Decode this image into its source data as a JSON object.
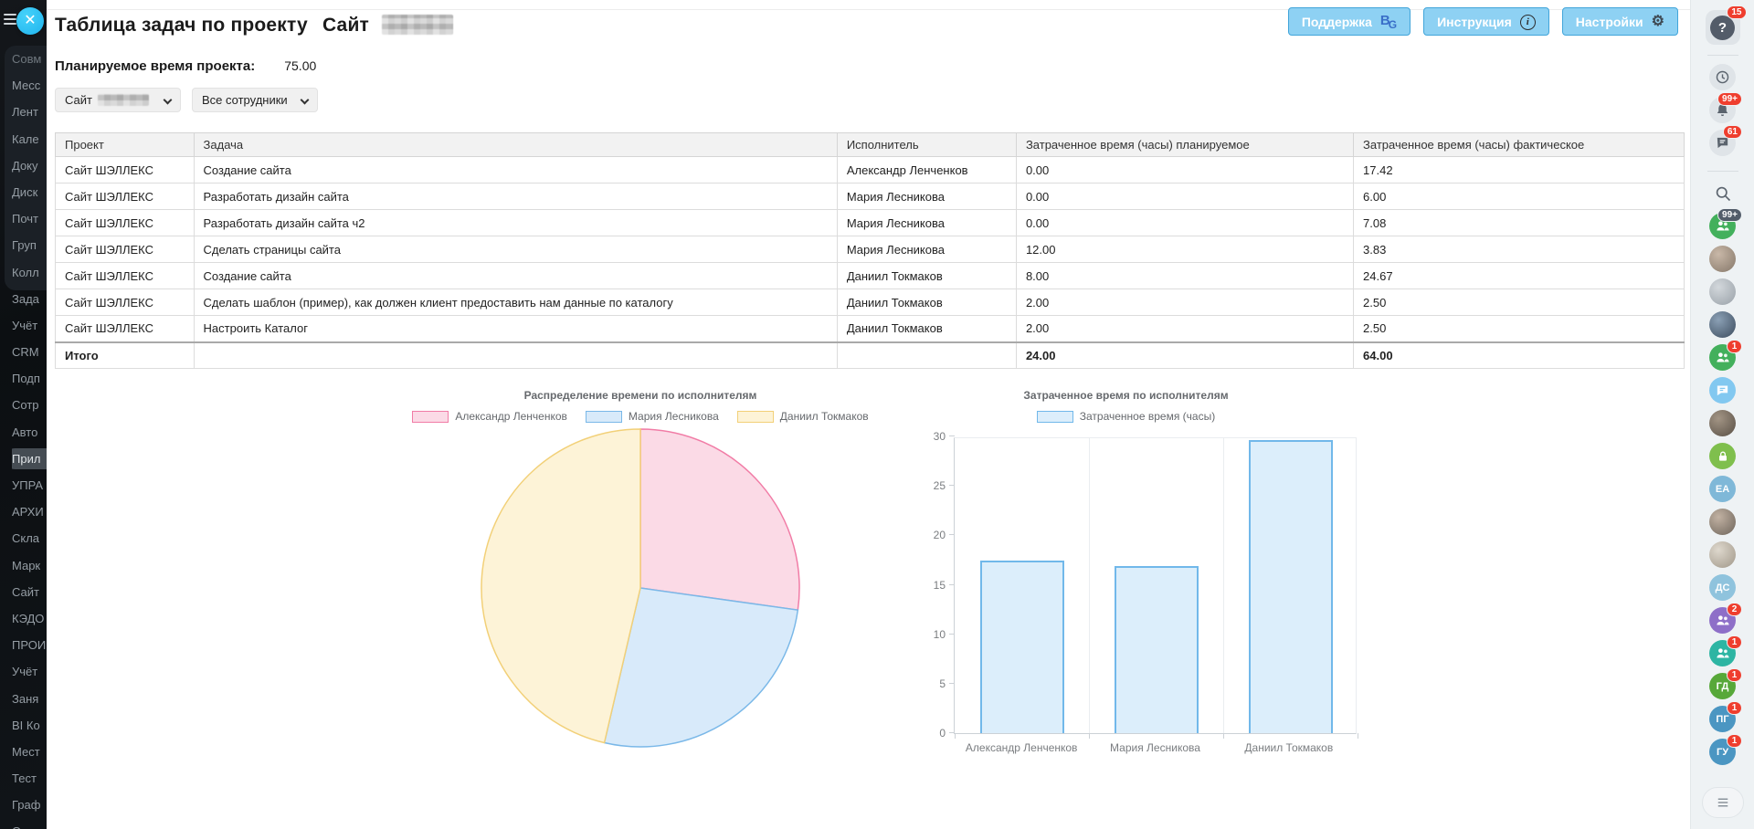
{
  "header": {
    "title": "Таблица задач по проекту",
    "project_word": "Сайт",
    "buttons": [
      {
        "name": "support",
        "label": "Поддержка",
        "icon": "bg-logo"
      },
      {
        "name": "instruction",
        "label": "Инструкция",
        "icon": "info"
      },
      {
        "name": "settings",
        "label": "Настройки",
        "icon": "gear"
      }
    ]
  },
  "planned_time": {
    "label": "Планируемое время проекта:",
    "value": "75.00"
  },
  "filters": {
    "project_select": "Сайт",
    "employee_select": "Все сотрудники"
  },
  "table": {
    "columns": [
      "Проект",
      "Задача",
      "Исполнитель",
      "Затраченное время (часы) планируемое",
      "Затраченное время (часы) фактическое"
    ],
    "rows": [
      [
        "Сайт ШЭЛЛЕКС",
        "Создание сайта",
        "Александр Ленченков",
        "0.00",
        "17.42"
      ],
      [
        "Сайт ШЭЛЛЕКС",
        "Разработать дизайн сайта",
        "Мария Лесникова",
        "0.00",
        "6.00"
      ],
      [
        "Сайт ШЭЛЛЕКС",
        "Разработать дизайн сайта ч2",
        "Мария Лесникова",
        "0.00",
        "7.08"
      ],
      [
        "Сайт ШЭЛЛЕКС",
        "Сделать страницы сайта",
        "Мария Лесникова",
        "12.00",
        "3.83"
      ],
      [
        "Сайт ШЭЛЛЕКС",
        "Создание сайта",
        "Даниил Токмаков",
        "8.00",
        "24.67"
      ],
      [
        "Сайт ШЭЛЛЕКС",
        "Сделать шаблон (пример), как должен клиент предоставить нам данные по каталогу",
        "Даниил Токмаков",
        "2.00",
        "2.50"
      ],
      [
        "Сайт ШЭЛЛЕКС",
        "Настроить Каталог",
        "Даниил Токмаков",
        "2.00",
        "2.50"
      ]
    ],
    "total": {
      "label": "Итого",
      "planned": "24.00",
      "actual": "64.00"
    }
  },
  "chart_data": [
    {
      "type": "pie",
      "title": "Распределение времени по исполнителям",
      "labels": [
        "Александр Ленченков",
        "Мария Лесникова",
        "Даниил Токмаков"
      ],
      "values": [
        17.42,
        16.91,
        29.67
      ],
      "colors": [
        {
          "fill": "#fbdae6",
          "border": "#f17ca6"
        },
        {
          "fill": "#d8eafa",
          "border": "#7ab8e8"
        },
        {
          "fill": "#fdf3d7",
          "border": "#f2d078"
        }
      ],
      "legend_position": "top",
      "start_angle_deg": 0,
      "direction": "clockwise"
    },
    {
      "type": "bar",
      "title": "Затраченное время по исполнителям",
      "legend": "Затраченное время (часы)",
      "categories": [
        "Александр Ленченков",
        "Мария Лесникова",
        "Даниил Токмаков"
      ],
      "values": [
        17.42,
        16.91,
        29.67
      ],
      "ylim": [
        0,
        30
      ],
      "ytick_step": 5,
      "bar_fill": "#dceefb",
      "bar_border": "#71b8ea",
      "grid": "vertical-category-separators"
    }
  ],
  "left_sidebar": {
    "items": [
      "Совм",
      "Месс",
      "Лент",
      "Кале",
      "Доку",
      "Диск",
      "Почт",
      "Груп",
      "Колл",
      "Зада",
      "Учёт",
      "CRM",
      "Подп",
      "Сотр",
      "Авто",
      "Прил",
      "УПРА",
      "АРХИ",
      "Скла",
      "Марк",
      "Сайт",
      "КЭДО",
      "ПРОИ",
      "Учёт",
      "Заня",
      "BI Ко",
      "Мест",
      "Тест",
      "Граф",
      "Онла"
    ],
    "active_index": 15
  },
  "right_sidebar": {
    "items": [
      {
        "kind": "help",
        "glyph": "?",
        "badge": "15"
      },
      {
        "kind": "divider"
      },
      {
        "kind": "glyph",
        "icon": "clock"
      },
      {
        "kind": "glyph",
        "icon": "bell",
        "badge": "99+"
      },
      {
        "kind": "glyph",
        "icon": "chat-lines",
        "badge": "61"
      },
      {
        "kind": "divider"
      },
      {
        "kind": "glyph",
        "icon": "search",
        "plain": true
      },
      {
        "kind": "people",
        "bg": "#43b05c",
        "badge": "99+",
        "badge_dark": true
      },
      {
        "kind": "avatar",
        "tone": 1
      },
      {
        "kind": "avatar",
        "tone": 2
      },
      {
        "kind": "avatar",
        "tone": 3
      },
      {
        "kind": "people",
        "bg": "#43b05c",
        "badge": "1"
      },
      {
        "kind": "bubble",
        "bg": "#82c8f0"
      },
      {
        "kind": "avatar",
        "tone": 4
      },
      {
        "kind": "lock",
        "bg": "#7fbf4d"
      },
      {
        "kind": "initials",
        "label": "ЕА",
        "bg": "#7fb8d8"
      },
      {
        "kind": "avatar",
        "tone": 5
      },
      {
        "kind": "avatar",
        "tone": 6
      },
      {
        "kind": "initials",
        "label": "ДС",
        "bg": "#8fc3dd"
      },
      {
        "kind": "people",
        "bg": "#8e6fc8",
        "badge": "2"
      },
      {
        "kind": "people",
        "bg": "#2db5a3",
        "badge": "1"
      },
      {
        "kind": "initials",
        "label": "ГД",
        "bg": "#57a839",
        "badge": "1"
      },
      {
        "kind": "initials",
        "label": "ПГ",
        "bg": "#4b96c2",
        "badge": "1"
      },
      {
        "kind": "initials",
        "label": "ГУ",
        "bg": "#4b96c2",
        "badge": "1"
      }
    ]
  },
  "colors": {
    "accent_button_bg": "#8ed1f3",
    "accent_button_border": "#41a5da",
    "badge_red": "#ef3e2e",
    "badge_dark": "#525c69"
  }
}
